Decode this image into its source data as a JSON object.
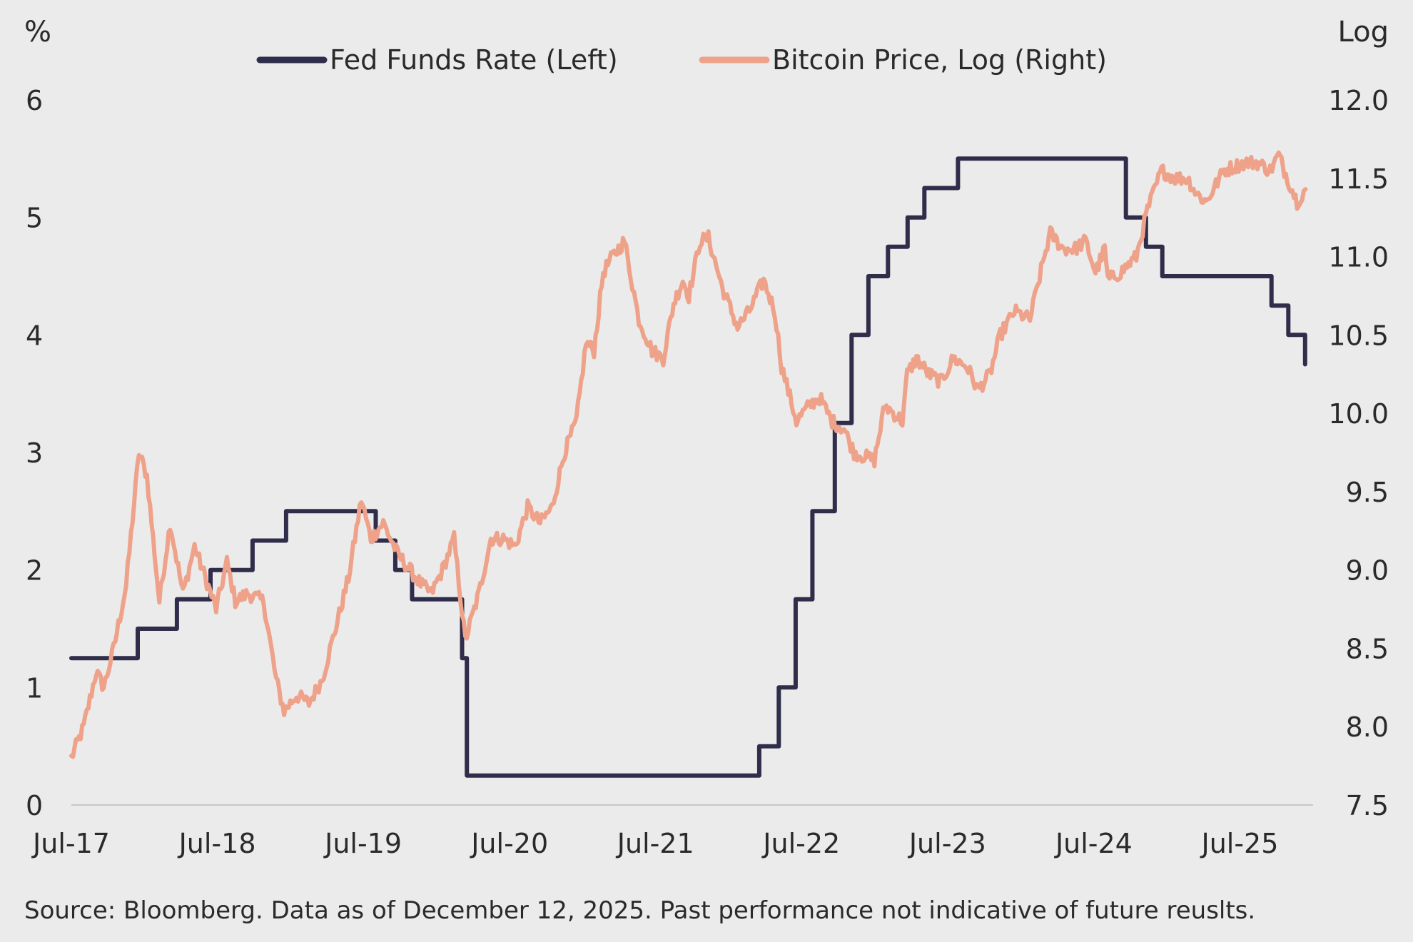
{
  "chart_data": {
    "type": "line",
    "left_axis_unit": "%",
    "right_axis_unit": "Log",
    "x_tick_labels": [
      "Jul-17",
      "Jul-18",
      "Jul-19",
      "Jul-20",
      "Jul-21",
      "Jul-22",
      "Jul-23",
      "Jul-24",
      "Jul-25"
    ],
    "left_axis": {
      "min": 0,
      "max": 6,
      "ticks": [
        "0",
        "1",
        "2",
        "3",
        "4",
        "5",
        "6"
      ]
    },
    "right_axis": {
      "min": 7.5,
      "max": 12.0,
      "ticks": [
        "7.5",
        "8.0",
        "8.5",
        "9.0",
        "9.5",
        "10.0",
        "10.5",
        "11.0",
        "11.5",
        "12.0"
      ]
    },
    "x_range": [
      "2017-07-01",
      "2025-12-31"
    ],
    "legend_position": "top-center",
    "series": [
      {
        "name": "Fed Funds Rate (Left)",
        "axis": "left",
        "color": "#2f2d4a",
        "step": true,
        "points": [
          [
            "2017-07-01",
            1.25
          ],
          [
            "2017-12-14",
            1.5
          ],
          [
            "2018-03-22",
            1.75
          ],
          [
            "2018-06-14",
            2.0
          ],
          [
            "2018-09-27",
            2.25
          ],
          [
            "2018-12-20",
            2.5
          ],
          [
            "2019-08-01",
            2.25
          ],
          [
            "2019-09-19",
            2.0
          ],
          [
            "2019-10-31",
            1.75
          ],
          [
            "2020-03-04",
            1.25
          ],
          [
            "2020-03-16",
            0.25
          ],
          [
            "2022-03-17",
            0.5
          ],
          [
            "2022-05-05",
            1.0
          ],
          [
            "2022-06-16",
            1.75
          ],
          [
            "2022-07-28",
            2.5
          ],
          [
            "2022-09-22",
            3.25
          ],
          [
            "2022-11-03",
            4.0
          ],
          [
            "2022-12-15",
            4.5
          ],
          [
            "2023-02-02",
            4.75
          ],
          [
            "2023-03-23",
            5.0
          ],
          [
            "2023-05-04",
            5.25
          ],
          [
            "2023-07-27",
            5.5
          ],
          [
            "2024-09-19",
            5.0
          ],
          [
            "2024-11-08",
            4.75
          ],
          [
            "2024-12-19",
            4.5
          ],
          [
            "2025-09-18",
            4.25
          ],
          [
            "2025-10-30",
            4.0
          ],
          [
            "2025-12-11",
            3.75
          ]
        ]
      },
      {
        "name": "Bitcoin Price, Log (Right)",
        "axis": "right",
        "color": "#efa28a",
        "step": false,
        "points": [
          [
            "2017-07-01",
            7.8
          ],
          [
            "2017-08-01",
            8.0
          ],
          [
            "2017-09-01",
            8.35
          ],
          [
            "2017-09-20",
            8.25
          ],
          [
            "2017-10-15",
            8.5
          ],
          [
            "2017-11-15",
            8.9
          ],
          [
            "2017-12-17",
            9.75
          ],
          [
            "2018-01-06",
            9.6
          ],
          [
            "2018-02-06",
            8.8
          ],
          [
            "2018-03-05",
            9.3
          ],
          [
            "2018-04-06",
            8.85
          ],
          [
            "2018-05-05",
            9.15
          ],
          [
            "2018-06-28",
            8.75
          ],
          [
            "2018-07-25",
            9.05
          ],
          [
            "2018-08-15",
            8.8
          ],
          [
            "2018-09-15",
            8.85
          ],
          [
            "2018-10-25",
            8.8
          ],
          [
            "2018-11-25",
            8.3
          ],
          [
            "2018-12-15",
            8.1
          ],
          [
            "2019-01-15",
            8.2
          ],
          [
            "2019-02-15",
            8.15
          ],
          [
            "2019-03-20",
            8.3
          ],
          [
            "2019-04-20",
            8.6
          ],
          [
            "2019-05-25",
            8.95
          ],
          [
            "2019-06-26",
            9.45
          ],
          [
            "2019-07-20",
            9.2
          ],
          [
            "2019-08-20",
            9.3
          ],
          [
            "2019-09-25",
            9.1
          ],
          [
            "2019-10-26",
            9.0
          ],
          [
            "2019-11-25",
            8.9
          ],
          [
            "2019-12-18",
            8.85
          ],
          [
            "2020-01-15",
            9.0
          ],
          [
            "2020-02-13",
            9.2
          ],
          [
            "2020-03-12",
            8.55
          ],
          [
            "2020-04-15",
            8.85
          ],
          [
            "2020-05-15",
            9.2
          ],
          [
            "2020-06-15",
            9.2
          ],
          [
            "2020-07-15",
            9.15
          ],
          [
            "2020-08-15",
            9.4
          ],
          [
            "2020-09-15",
            9.3
          ],
          [
            "2020-10-15",
            9.4
          ],
          [
            "2020-11-15",
            9.75
          ],
          [
            "2020-12-15",
            9.95
          ],
          [
            "2021-01-08",
            10.45
          ],
          [
            "2021-01-28",
            10.4
          ],
          [
            "2021-02-20",
            10.9
          ],
          [
            "2021-03-15",
            11.0
          ],
          [
            "2021-04-14",
            11.1
          ],
          [
            "2021-05-20",
            10.6
          ],
          [
            "2021-06-22",
            10.4
          ],
          [
            "2021-07-20",
            10.35
          ],
          [
            "2021-08-15",
            10.7
          ],
          [
            "2021-09-07",
            10.85
          ],
          [
            "2021-09-22",
            10.75
          ],
          [
            "2021-10-20",
            11.1
          ],
          [
            "2021-11-10",
            11.12
          ],
          [
            "2021-12-15",
            10.8
          ],
          [
            "2022-01-22",
            10.55
          ],
          [
            "2022-02-20",
            10.65
          ],
          [
            "2022-03-28",
            10.85
          ],
          [
            "2022-04-25",
            10.65
          ],
          [
            "2022-05-12",
            10.3
          ],
          [
            "2022-06-18",
            9.95
          ],
          [
            "2022-07-20",
            10.05
          ],
          [
            "2022-08-15",
            10.1
          ],
          [
            "2022-09-15",
            9.95
          ],
          [
            "2022-10-15",
            9.9
          ],
          [
            "2022-11-09",
            9.75
          ],
          [
            "2022-12-30",
            9.7
          ],
          [
            "2023-01-25",
            10.05
          ],
          [
            "2023-03-10",
            9.95
          ],
          [
            "2023-03-22",
            10.25
          ],
          [
            "2023-04-14",
            10.35
          ],
          [
            "2023-05-15",
            10.25
          ],
          [
            "2023-06-15",
            10.2
          ],
          [
            "2023-07-15",
            10.35
          ],
          [
            "2023-08-18",
            10.3
          ],
          [
            "2023-09-15",
            10.15
          ],
          [
            "2023-10-15",
            10.25
          ],
          [
            "2023-11-10",
            10.5
          ],
          [
            "2023-12-15",
            10.65
          ],
          [
            "2024-01-23",
            10.6
          ],
          [
            "2024-02-28",
            11.0
          ],
          [
            "2024-03-14",
            11.15
          ],
          [
            "2024-04-15",
            11.05
          ],
          [
            "2024-05-15",
            11.05
          ],
          [
            "2024-06-10",
            11.1
          ],
          [
            "2024-07-05",
            10.9
          ],
          [
            "2024-07-28",
            11.05
          ],
          [
            "2024-08-05",
            10.85
          ],
          [
            "2024-09-06",
            10.9
          ],
          [
            "2024-10-15",
            11.0
          ],
          [
            "2024-11-12",
            11.3
          ],
          [
            "2024-12-17",
            11.55
          ],
          [
            "2025-01-20",
            11.5
          ],
          [
            "2025-02-20",
            11.5
          ],
          [
            "2025-03-15",
            11.4
          ],
          [
            "2025-04-08",
            11.35
          ],
          [
            "2025-05-22",
            11.55
          ],
          [
            "2025-07-14",
            11.6
          ],
          [
            "2025-08-14",
            11.6
          ],
          [
            "2025-09-15",
            11.55
          ],
          [
            "2025-10-06",
            11.65
          ],
          [
            "2025-10-20",
            11.55
          ],
          [
            "2025-11-21",
            11.35
          ],
          [
            "2025-12-12",
            11.43
          ]
        ]
      }
    ]
  },
  "footer": {
    "source": "Source: Bloomberg. Data as of December 12, 2025. Past performance not indicative of future reuslts."
  }
}
